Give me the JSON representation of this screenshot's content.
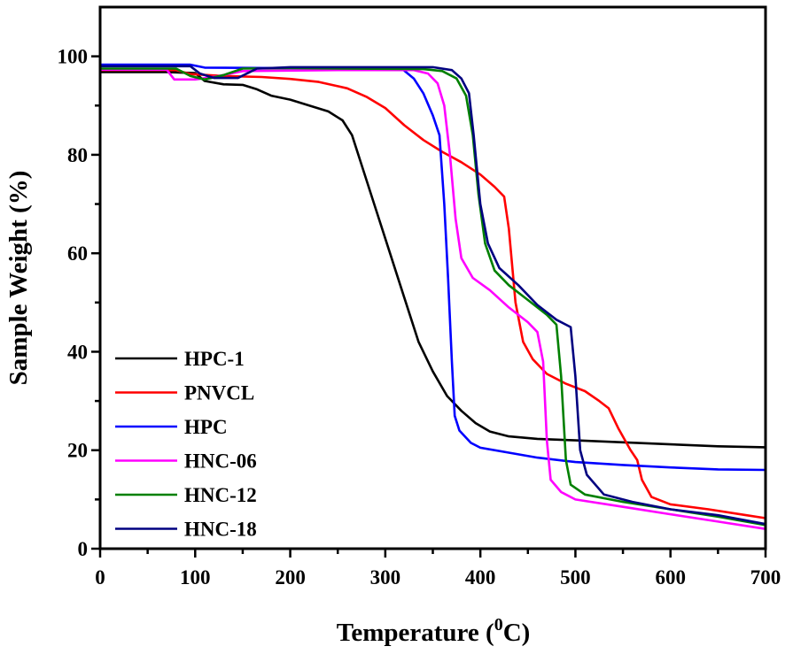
{
  "chart_data": {
    "type": "line",
    "title": "",
    "xlabel": "Temperature (",
    "xlabel_sup": "0",
    "xlabel_suffix": "C)",
    "ylabel": "Sample Weight (%)",
    "xlim": [
      0,
      700
    ],
    "ylim": [
      0,
      110
    ],
    "xticks": [
      0,
      100,
      200,
      300,
      400,
      500,
      600,
      700
    ],
    "yticks": [
      0,
      20,
      40,
      60,
      80,
      100
    ],
    "xticks_minor": [
      50,
      150,
      250,
      350,
      450,
      550,
      650
    ],
    "yticks_minor": [
      10,
      30,
      50,
      70,
      90
    ],
    "grid": false,
    "legend_position": "bottom-left",
    "series": [
      {
        "name": "HPC-1",
        "color": "#000000",
        "points": [
          [
            0,
            96.8
          ],
          [
            70,
            96.8
          ],
          [
            100,
            96.6
          ],
          [
            110,
            95.0
          ],
          [
            130,
            94.3
          ],
          [
            150,
            94.2
          ],
          [
            165,
            93.3
          ],
          [
            180,
            92.0
          ],
          [
            200,
            91.2
          ],
          [
            220,
            90.0
          ],
          [
            240,
            88.8
          ],
          [
            255,
            87.0
          ],
          [
            265,
            84.0
          ],
          [
            275,
            78.0
          ],
          [
            290,
            69.0
          ],
          [
            305,
            60.0
          ],
          [
            320,
            51.0
          ],
          [
            335,
            42.0
          ],
          [
            350,
            36.0
          ],
          [
            365,
            31.0
          ],
          [
            380,
            28.0
          ],
          [
            395,
            25.5
          ],
          [
            410,
            23.8
          ],
          [
            430,
            22.8
          ],
          [
            460,
            22.3
          ],
          [
            500,
            22.0
          ],
          [
            550,
            21.6
          ],
          [
            600,
            21.2
          ],
          [
            650,
            20.8
          ],
          [
            700,
            20.6
          ]
        ]
      },
      {
        "name": "PNVCL",
        "color": "#ff0000",
        "points": [
          [
            0,
            97.2
          ],
          [
            80,
            97.2
          ],
          [
            95,
            96.4
          ],
          [
            130,
            96.0
          ],
          [
            170,
            95.8
          ],
          [
            200,
            95.4
          ],
          [
            230,
            94.8
          ],
          [
            260,
            93.5
          ],
          [
            280,
            91.8
          ],
          [
            300,
            89.5
          ],
          [
            320,
            86.0
          ],
          [
            340,
            83.0
          ],
          [
            360,
            80.6
          ],
          [
            380,
            78.5
          ],
          [
            400,
            76.0
          ],
          [
            415,
            73.5
          ],
          [
            425,
            71.5
          ],
          [
            430,
            65.0
          ],
          [
            437,
            50.0
          ],
          [
            445,
            42.0
          ],
          [
            455,
            38.5
          ],
          [
            470,
            35.5
          ],
          [
            490,
            33.5
          ],
          [
            510,
            32.0
          ],
          [
            525,
            30.0
          ],
          [
            535,
            28.5
          ],
          [
            545,
            24.5
          ],
          [
            558,
            20.0
          ],
          [
            565,
            18.0
          ],
          [
            570,
            14.0
          ],
          [
            580,
            10.5
          ],
          [
            600,
            9.0
          ],
          [
            640,
            8.0
          ],
          [
            680,
            6.8
          ],
          [
            700,
            6.2
          ]
        ]
      },
      {
        "name": "HPC",
        "color": "#0000ff",
        "points": [
          [
            0,
            98.3
          ],
          [
            95,
            98.3
          ],
          [
            110,
            97.7
          ],
          [
            200,
            97.6
          ],
          [
            300,
            97.6
          ],
          [
            318,
            97.4
          ],
          [
            330,
            95.5
          ],
          [
            340,
            92.5
          ],
          [
            350,
            88.0
          ],
          [
            357,
            84.0
          ],
          [
            362,
            70.0
          ],
          [
            366,
            55.0
          ],
          [
            370,
            38.0
          ],
          [
            373,
            27.0
          ],
          [
            378,
            24.0
          ],
          [
            390,
            21.5
          ],
          [
            400,
            20.5
          ],
          [
            430,
            19.5
          ],
          [
            460,
            18.5
          ],
          [
            500,
            17.6
          ],
          [
            550,
            17.0
          ],
          [
            600,
            16.5
          ],
          [
            650,
            16.1
          ],
          [
            700,
            16.0
          ]
        ]
      },
      {
        "name": "HNC-06",
        "color": "#ff00ff",
        "points": [
          [
            0,
            97.3
          ],
          [
            70,
            97.3
          ],
          [
            78,
            95.3
          ],
          [
            100,
            95.3
          ],
          [
            125,
            96.0
          ],
          [
            150,
            97.0
          ],
          [
            250,
            97.2
          ],
          [
            330,
            97.2
          ],
          [
            345,
            96.5
          ],
          [
            355,
            94.5
          ],
          [
            362,
            90.0
          ],
          [
            368,
            80.0
          ],
          [
            374,
            67.0
          ],
          [
            380,
            59.0
          ],
          [
            392,
            55.0
          ],
          [
            410,
            52.5
          ],
          [
            430,
            49.0
          ],
          [
            450,
            46.0
          ],
          [
            460,
            44.0
          ],
          [
            466,
            38.0
          ],
          [
            470,
            22.0
          ],
          [
            474,
            14.0
          ],
          [
            485,
            11.5
          ],
          [
            500,
            10.0
          ],
          [
            550,
            8.5
          ],
          [
            600,
            7.0
          ],
          [
            650,
            5.5
          ],
          [
            700,
            4.0
          ]
        ]
      },
      {
        "name": "HNC-12",
        "color": "#008000",
        "points": [
          [
            0,
            97.5
          ],
          [
            80,
            97.5
          ],
          [
            95,
            96.0
          ],
          [
            110,
            95.3
          ],
          [
            130,
            96.2
          ],
          [
            150,
            97.5
          ],
          [
            200,
            97.6
          ],
          [
            340,
            97.4
          ],
          [
            360,
            97.0
          ],
          [
            375,
            95.5
          ],
          [
            385,
            92.0
          ],
          [
            392,
            84.0
          ],
          [
            398,
            72.0
          ],
          [
            405,
            62.0
          ],
          [
            415,
            56.5
          ],
          [
            430,
            53.5
          ],
          [
            450,
            50.5
          ],
          [
            470,
            47.5
          ],
          [
            480,
            45.5
          ],
          [
            485,
            35.0
          ],
          [
            490,
            18.0
          ],
          [
            495,
            13.0
          ],
          [
            510,
            11.0
          ],
          [
            550,
            9.5
          ],
          [
            600,
            8.0
          ],
          [
            650,
            6.5
          ],
          [
            700,
            4.8
          ]
        ]
      },
      {
        "name": "HNC-18",
        "color": "#000080",
        "points": [
          [
            0,
            98.0
          ],
          [
            95,
            98.0
          ],
          [
            105,
            96.5
          ],
          [
            120,
            95.6
          ],
          [
            145,
            95.6
          ],
          [
            165,
            97.5
          ],
          [
            200,
            97.8
          ],
          [
            350,
            97.8
          ],
          [
            370,
            97.2
          ],
          [
            380,
            95.5
          ],
          [
            388,
            92.5
          ],
          [
            393,
            84.0
          ],
          [
            400,
            70.0
          ],
          [
            408,
            62.0
          ],
          [
            420,
            57.0
          ],
          [
            440,
            53.5
          ],
          [
            460,
            49.5
          ],
          [
            480,
            46.5
          ],
          [
            495,
            45.0
          ],
          [
            500,
            35.0
          ],
          [
            505,
            20.0
          ],
          [
            512,
            15.0
          ],
          [
            530,
            11.0
          ],
          [
            560,
            9.5
          ],
          [
            600,
            8.0
          ],
          [
            650,
            6.8
          ],
          [
            700,
            5.0
          ]
        ]
      }
    ]
  }
}
